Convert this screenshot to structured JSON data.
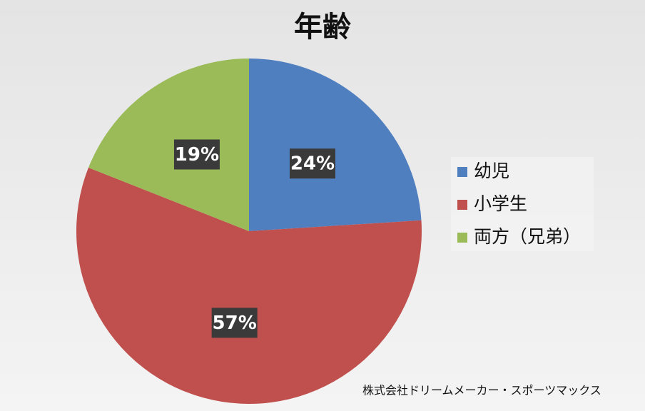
{
  "chart_data": {
    "type": "pie",
    "title": "年齢",
    "categories": [
      "幼児",
      "小学生",
      "両方（兄弟）"
    ],
    "values": [
      24,
      57,
      19
    ],
    "value_labels": [
      "24%",
      "57%",
      "19%"
    ],
    "colors": [
      "#4f7fbf",
      "#c0504d",
      "#9bbb59"
    ],
    "legend": "right",
    "annotation": "株式会社ドリームメーカー・スポーツマックス"
  }
}
